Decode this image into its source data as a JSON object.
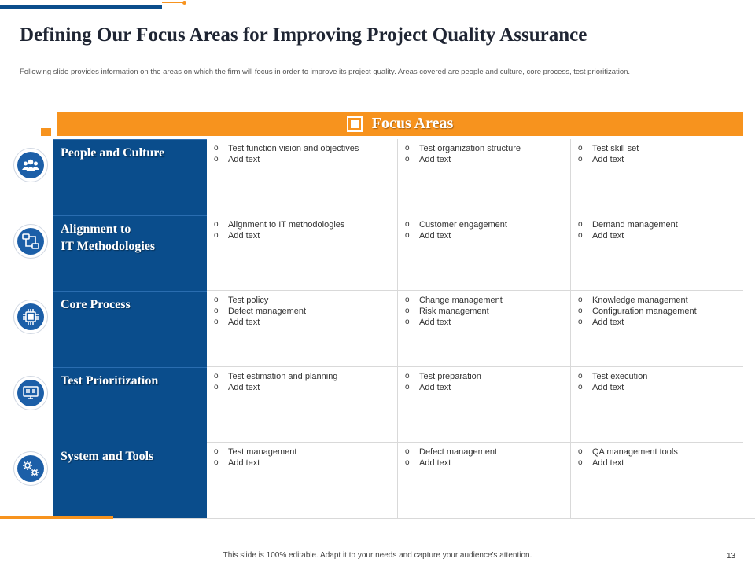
{
  "title": "Defining Our Focus Areas for Improving Project Quality Assurance",
  "subtitle": "Following slide provides information on the areas on which the firm will focus in order to improve its project quality. Areas covered are people and culture, core process, test prioritization.",
  "header": {
    "label": "Focus Areas",
    "icon": "frame-icon"
  },
  "colors": {
    "navy": "#0a4d8c",
    "orange": "#f7931e",
    "icon_blue": "#1c5fa8"
  },
  "rows": [
    {
      "icon": "people-icon",
      "category": "People and Culture",
      "cols": [
        [
          "Test  function vision and objectives",
          "Add text"
        ],
        [
          "Test  organization structure",
          "Add text"
        ],
        [
          "Test  skill set",
          "Add text"
        ]
      ]
    },
    {
      "icon": "workflow-icon",
      "category": "Alignment to\nIT Methodologies",
      "cols": [
        [
          "Alignment to IT methodologies",
          "Add text"
        ],
        [
          "Customer engagement",
          "Add text"
        ],
        [
          "Demand management",
          "Add text"
        ]
      ]
    },
    {
      "icon": "chip-icon",
      "category": "Core Process",
      "cols": [
        [
          "Test policy",
          "Defect management",
          "Add text"
        ],
        [
          "Change management",
          "Risk management",
          "Add text"
        ],
        [
          "Knowledge management",
          "Configuration management",
          "Add text"
        ]
      ]
    },
    {
      "icon": "monitor-icon",
      "category": "Test Prioritization",
      "cols": [
        [
          "Test estimation and planning",
          "Add text"
        ],
        [
          "Test preparation",
          "Add text"
        ],
        [
          "Test execution",
          "Add text"
        ]
      ]
    },
    {
      "icon": "gears-icon",
      "category": "System and Tools",
      "cols": [
        [
          "Test management",
          "Add text"
        ],
        [
          "Defect management",
          "Add text"
        ],
        [
          "QA  management tools",
          "Add text"
        ]
      ]
    }
  ],
  "footer": {
    "note": "This slide is 100% editable.  Adapt it to your needs and capture your audience's attention.",
    "page_number": "13"
  }
}
